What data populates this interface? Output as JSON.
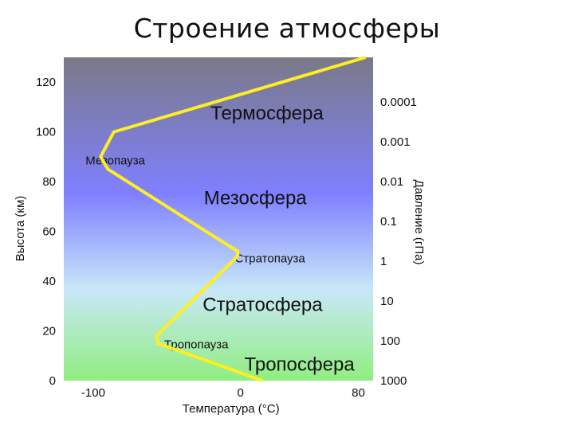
{
  "slide": {
    "title": "Строение атмосферы"
  },
  "colors": {
    "profile_line": "#ffee22",
    "gradient_top": "#7a7a88",
    "gradient_mid": "#7f7fff",
    "gradient_low": "#c8e8f8",
    "gradient_bottom": "#90ee80"
  },
  "chart_data": {
    "type": "line",
    "xlabel": "Температура (°C)",
    "ylabel": "Высота (км)",
    "y2label": "Давление (гПа)",
    "xlim": [
      -120,
      90
    ],
    "ylim": [
      0,
      130
    ],
    "x_ticks": [
      "-100",
      "0",
      "80"
    ],
    "x_tick_values": [
      -100,
      0,
      80
    ],
    "y_ticks": [
      "0",
      "20",
      "40",
      "60",
      "80",
      "100",
      "120"
    ],
    "y_tick_values": [
      0,
      20,
      40,
      60,
      80,
      100,
      120
    ],
    "pressure_ticks": [
      "1000",
      "100",
      "10",
      "1",
      "0.1",
      "0.01",
      "0.001",
      "0.0001"
    ],
    "pressure_tick_heights": [
      0,
      16,
      32,
      48,
      64,
      80,
      96,
      112
    ],
    "series": [
      {
        "x": [
          15,
          -56,
          -57,
          -2,
          -2,
          -90,
          -95,
          -86,
          85
        ],
        "y": [
          0,
          15,
          18,
          50,
          52,
          85,
          90,
          100,
          130
        ]
      }
    ],
    "layers": [
      {
        "label": "Термосфера",
        "x": 18,
        "y": 105,
        "size": "big"
      },
      {
        "label": "Мезопауза",
        "x": -85,
        "y": 87,
        "size": "small"
      },
      {
        "label": "Мезосфера",
        "x": 10,
        "y": 71,
        "size": "big"
      },
      {
        "label": "Стратопауза",
        "x": 20,
        "y": 47.5,
        "size": "small"
      },
      {
        "label": "Стратосфера",
        "x": 15,
        "y": 28,
        "size": "big"
      },
      {
        "label": "Тропопауза",
        "x": -30,
        "y": 13,
        "size": "small"
      },
      {
        "label": "Тропосфера",
        "x": 40,
        "y": 4,
        "size": "big"
      }
    ],
    "grid": false,
    "legend": "none"
  }
}
